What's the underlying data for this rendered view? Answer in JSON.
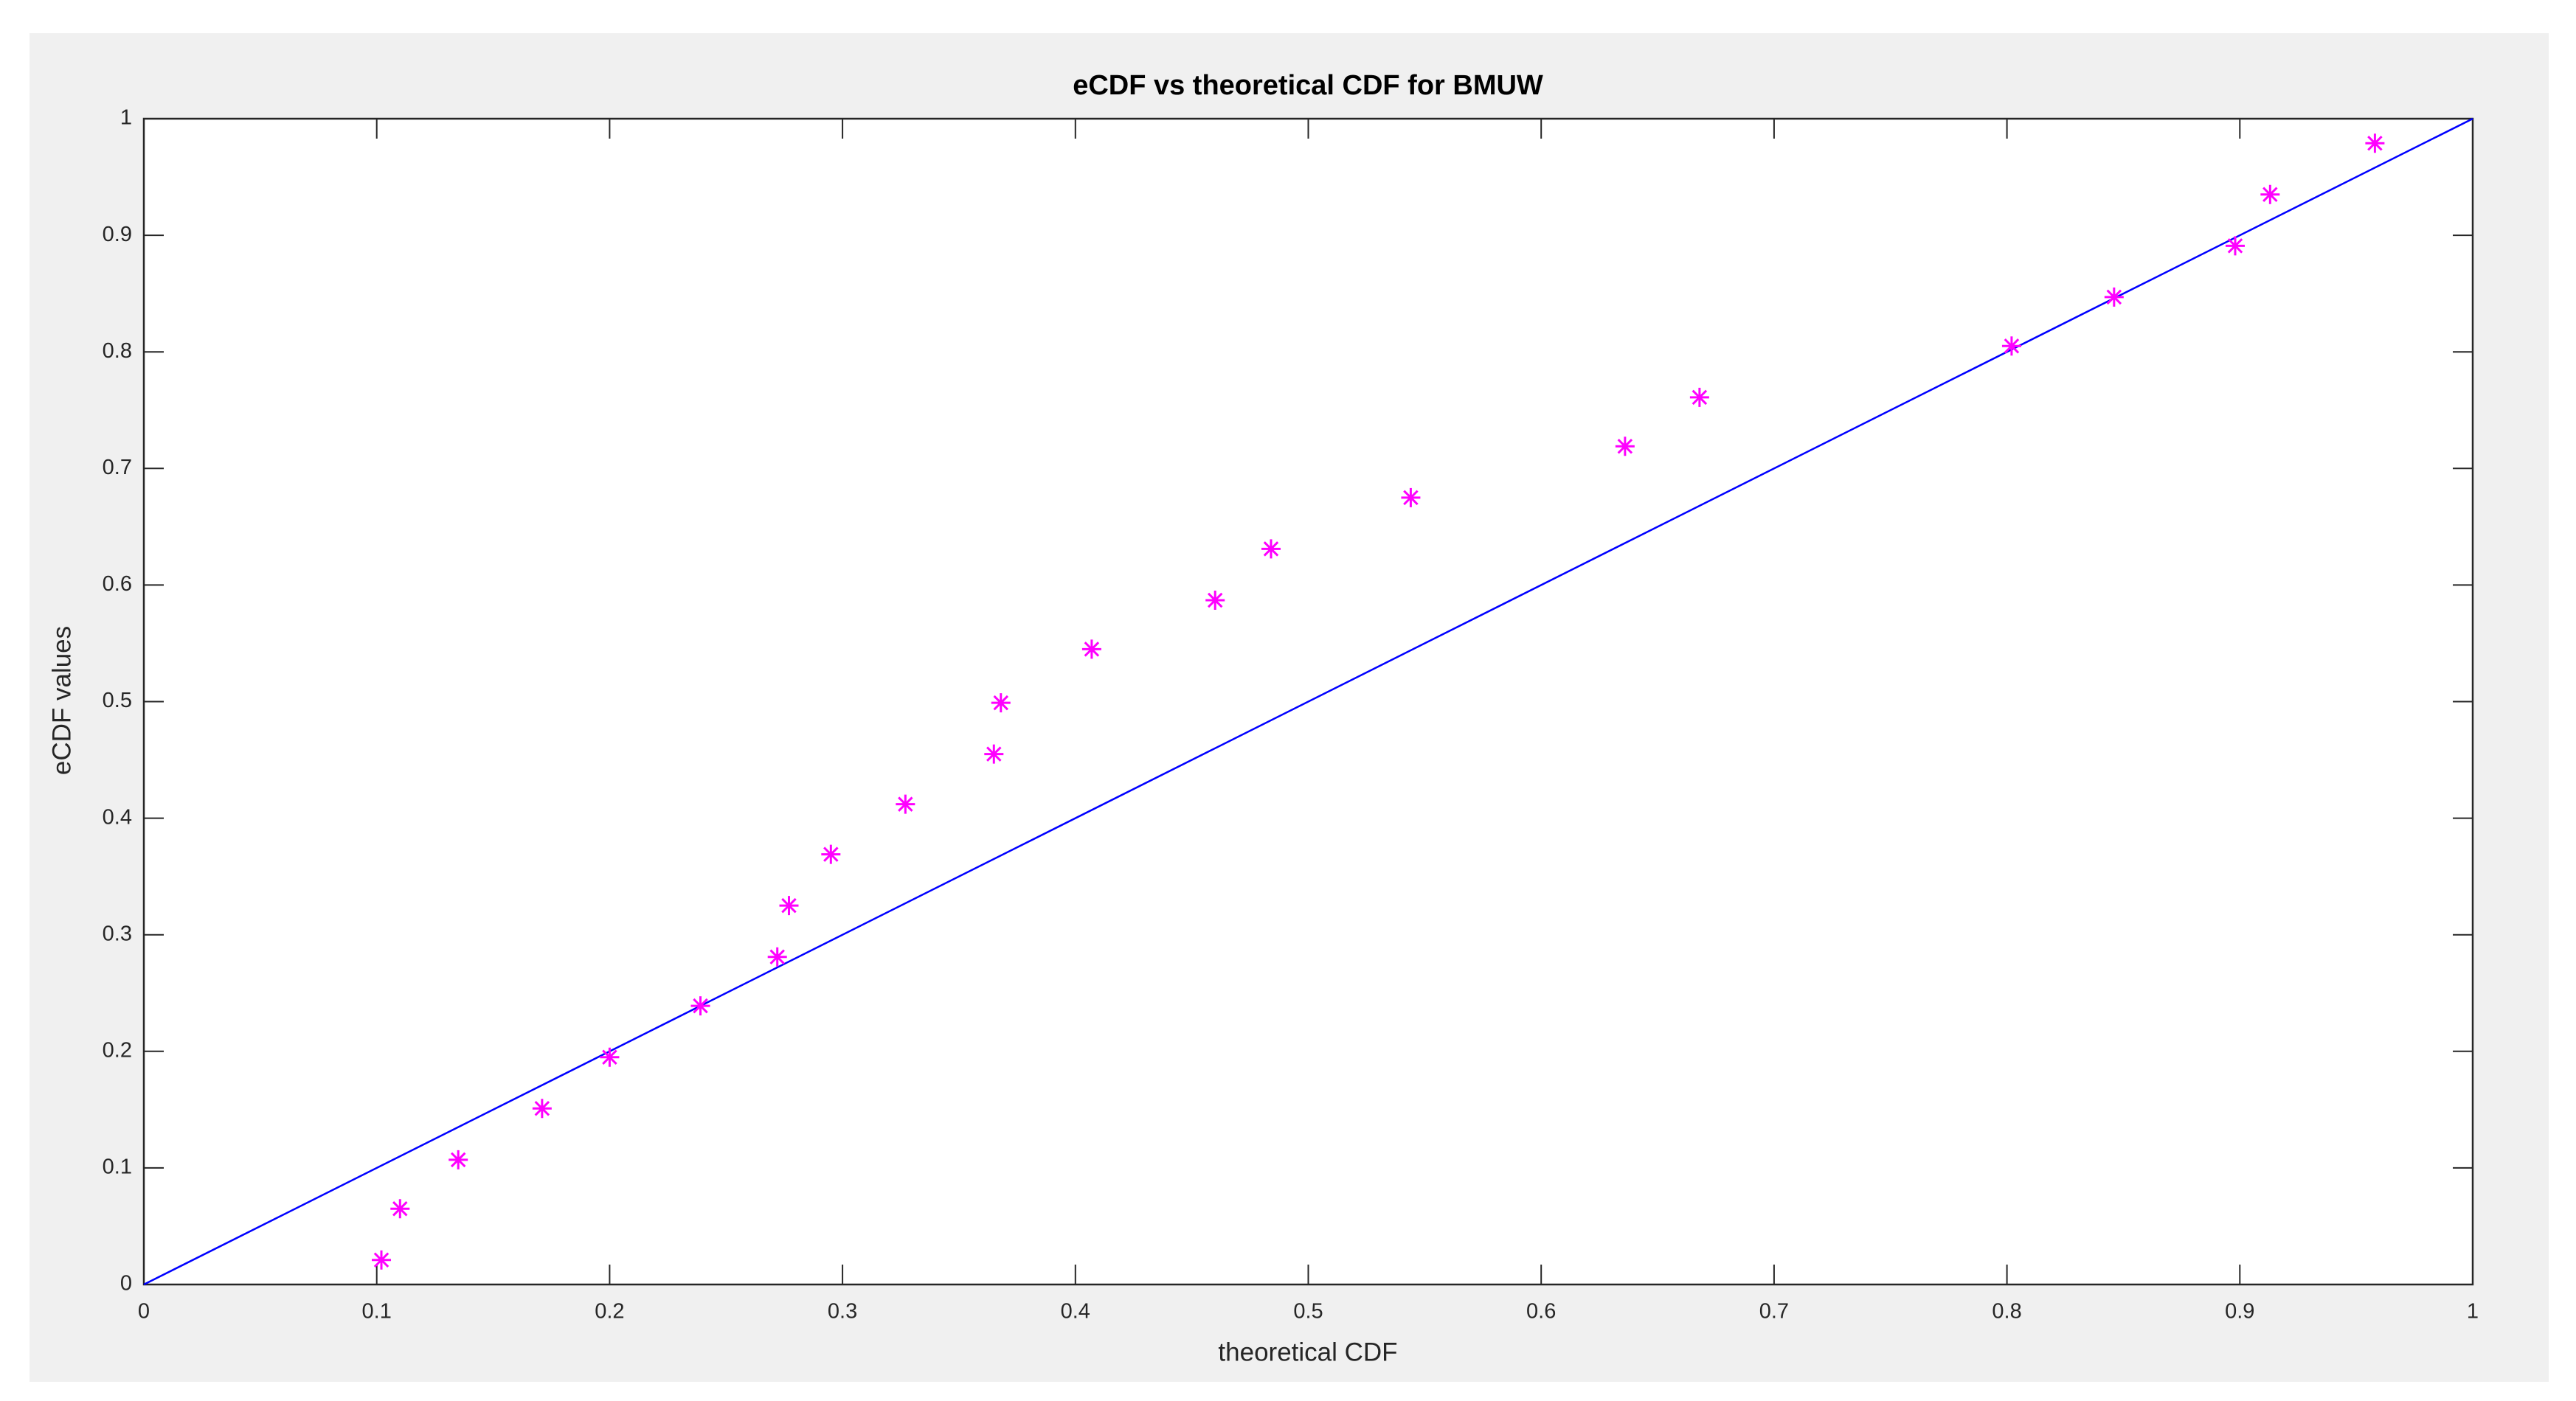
{
  "chart_data": {
    "type": "scatter",
    "title": "eCDF vs theoretical CDF for BMUW",
    "x_label": "theoretical CDF",
    "y_label": "eCDF values",
    "xlim": [
      0,
      1
    ],
    "ylim": [
      0,
      1
    ],
    "xticks": [
      0,
      0.1,
      0.2,
      0.3,
      0.4,
      0.5,
      0.6,
      0.7,
      0.8,
      0.9,
      1
    ],
    "yticks": [
      0,
      0.1,
      0.2,
      0.3,
      0.4,
      0.5,
      0.6,
      0.7,
      0.8,
      0.9,
      1
    ],
    "grid": false,
    "series": [
      {
        "type": "line",
        "color": "#0000ff",
        "x": [
          0,
          1
        ],
        "values": [
          0,
          1
        ]
      },
      {
        "type": "scatter",
        "marker": "*",
        "color": "#ff00ff",
        "x": [
          0.102,
          0.11,
          0.135,
          0.171,
          0.2,
          0.239,
          0.272,
          0.277,
          0.295,
          0.327,
          0.365,
          0.368,
          0.407,
          0.46,
          0.484,
          0.544,
          0.636,
          0.668,
          0.802,
          0.846,
          0.898,
          0.913,
          0.958
        ],
        "values": [
          0.021,
          0.065,
          0.107,
          0.151,
          0.195,
          0.239,
          0.281,
          0.325,
          0.369,
          0.412,
          0.455,
          0.499,
          0.545,
          0.587,
          0.631,
          0.675,
          0.719,
          0.761,
          0.805,
          0.847,
          0.891,
          0.935,
          0.979
        ]
      }
    ]
  }
}
